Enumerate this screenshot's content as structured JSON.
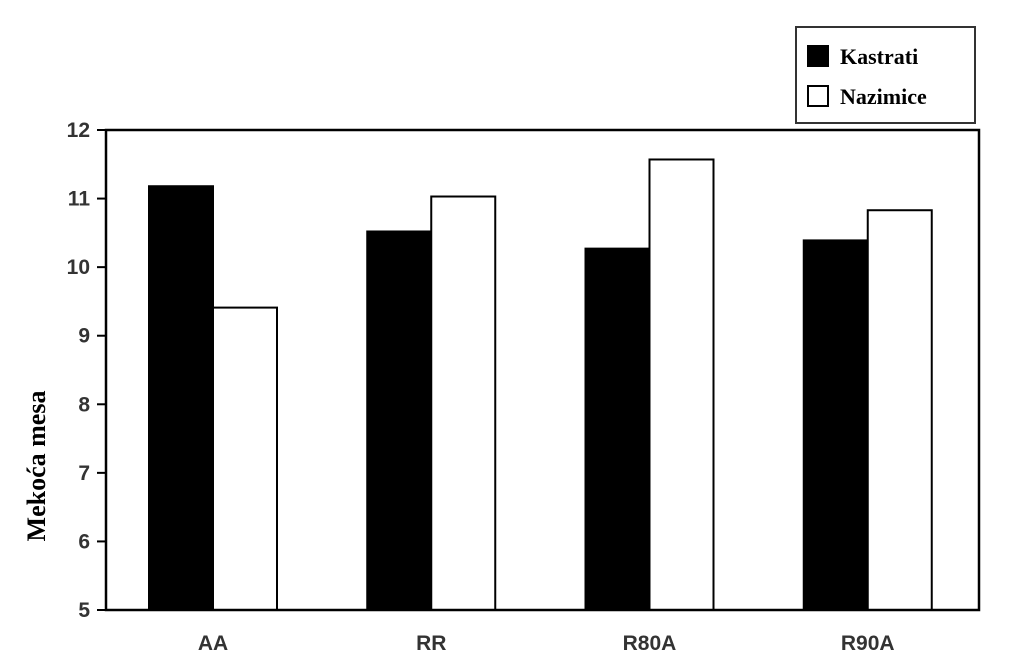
{
  "chart_data": {
    "type": "bar",
    "title": "",
    "xlabel": "",
    "ylabel": "Mekoća mesa",
    "ylim": [
      5,
      12
    ],
    "yticks": [
      "5",
      "6",
      "7",
      "8",
      "9",
      "10",
      "11",
      "12"
    ],
    "categories": [
      "AA",
      "RR",
      "R80A",
      "R90A"
    ],
    "series": [
      {
        "name": "Kastrati",
        "values": [
          11.18,
          10.52,
          10.27,
          10.39
        ],
        "color": "#000000"
      },
      {
        "name": "Nazimice",
        "values": [
          9.41,
          11.03,
          11.57,
          10.83
        ],
        "color": "#ffffff"
      }
    ],
    "legend": {
      "position": "top-right"
    },
    "grid": false
  }
}
